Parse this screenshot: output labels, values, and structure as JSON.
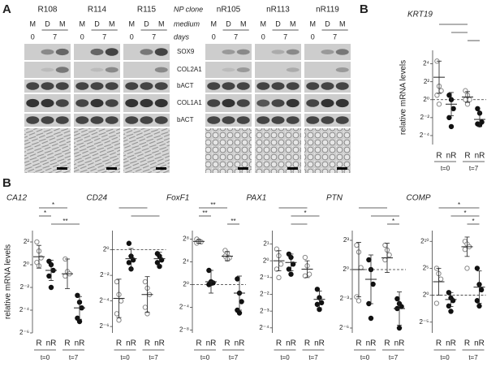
{
  "panel_a": {
    "label": "A",
    "np_clone_label": "NP clone",
    "medium_label": "medium",
    "days_label": "days",
    "clones": [
      {
        "name": "R108",
        "medium": [
          "M",
          "D",
          "M"
        ],
        "days": [
          "0",
          "7"
        ]
      },
      {
        "name": "R114",
        "medium": [
          "M",
          "D",
          "M"
        ],
        "days": [
          "0",
          "7"
        ]
      },
      {
        "name": "R115",
        "medium": [
          "M",
          "D",
          "M"
        ],
        "days": [
          "0",
          "7"
        ]
      },
      {
        "name": "nR105",
        "medium": [
          "M",
          "D",
          "M"
        ],
        "days": [
          "0",
          "7"
        ]
      },
      {
        "name": "nR113",
        "medium": [
          "M",
          "D",
          "M"
        ],
        "days": [
          "0",
          "7"
        ]
      },
      {
        "name": "nR119",
        "medium": [
          "M",
          "D",
          "M"
        ],
        "days": [
          "0",
          "7"
        ]
      }
    ],
    "markers": [
      "SOX9",
      "COL2A1",
      "bACT",
      "COL1A1",
      "bACT"
    ]
  },
  "panel_b": {
    "label": "B"
  },
  "chart_data": [
    {
      "type": "dot",
      "title": "KRT19",
      "ylabel": "relative mRNA levels",
      "categories": [
        "R",
        "nR",
        "R",
        "nR"
      ],
      "groups": [
        "t=0",
        "t=7"
      ],
      "colors": [
        "#888888",
        "#111111",
        "#888888",
        "#111111"
      ],
      "fills": [
        "#ffffff",
        "#111111",
        "#ffffff",
        "#111111"
      ],
      "values": [
        [
          4.3,
          1.5,
          1,
          0.5,
          -0.5
        ],
        [
          0.5,
          0,
          -1,
          -2,
          -3
        ],
        [
          1,
          0.5,
          0,
          0,
          -0.5
        ],
        [
          -1,
          -1.5,
          -2.5,
          -2.7,
          -2.8
        ]
      ],
      "means": [
        2.5,
        -0.5,
        0.3,
        -2.2
      ],
      "errors": [
        1.8,
        1.3,
        0.6,
        0.8
      ],
      "ylim": [
        -5,
        5.5
      ],
      "yticks": [
        {
          "value": 4,
          "label": "2⁴"
        },
        {
          "value": 2,
          "label": "2²"
        },
        {
          "value": 0,
          "label": "2⁰"
        },
        {
          "value": -2,
          "label": "2⁻²"
        },
        {
          "value": -4,
          "label": "2⁻⁴"
        }
      ],
      "reference_line": 0,
      "brackets": [
        {
          "pair": [
            0,
            2
          ]
        },
        {
          "pair": [
            1,
            2
          ]
        },
        {
          "pair": [
            2,
            3
          ]
        }
      ]
    },
    {
      "type": "dot",
      "title": "CA12",
      "ylabel": "relative mRNA levels",
      "categories": [
        "R",
        "nR",
        "R",
        "nR"
      ],
      "groups": [
        "t=0",
        "t=7"
      ],
      "colors": [
        "#888888",
        "#111111",
        "#888888",
        "#111111"
      ],
      "fills": [
        "#ffffff",
        "#111111",
        "#ffffff",
        "#111111"
      ],
      "values": [
        [
          2,
          1.2,
          0.6,
          0.2,
          -0.1
        ],
        [
          0.3,
          0,
          -0.5,
          -1,
          -2
        ],
        [
          0.5,
          -0.6,
          -0.8,
          -1
        ],
        [
          -2.7,
          -3.3,
          -3.8,
          -4.7,
          -5
        ]
      ],
      "means": [
        0.7,
        -0.5,
        -0.8,
        -3.8
      ],
      "errors": [
        1,
        0.9,
        1.3,
        1
      ],
      "ylim": [
        -6,
        3
      ],
      "yticks": [
        {
          "value": 2,
          "label": "2²"
        },
        {
          "value": 0,
          "label": "2⁰"
        },
        {
          "value": -2,
          "label": "2⁻²"
        },
        {
          "value": -4,
          "label": "2⁻⁴"
        },
        {
          "value": -6,
          "label": "2⁻⁶"
        }
      ],
      "brackets": [
        {
          "pair": [
            0,
            2
          ],
          "label": "*"
        },
        {
          "pair": [
            0,
            1
          ],
          "label": "*"
        },
        {
          "pair": [
            1,
            3
          ],
          "label": "**"
        }
      ]
    },
    {
      "type": "dot",
      "title": "CD24",
      "categories": [
        "R",
        "nR",
        "R",
        "nR"
      ],
      "groups": [
        "t=0",
        "t=7"
      ],
      "colors": [
        "#888888",
        "#111111",
        "#888888",
        "#111111"
      ],
      "fills": [
        "#ffffff",
        "#111111",
        "#ffffff",
        "#111111"
      ],
      "values": [
        [
          -2.5,
          -3.5,
          -4,
          -5,
          -5.5
        ],
        [
          0.5,
          -0.5,
          -0.8,
          -1,
          -1.5
        ],
        [
          -2.5,
          -3,
          -3.5,
          -4.5,
          -5
        ],
        [
          -0.3,
          -0.5,
          -0.8,
          -1,
          -1.3
        ]
      ],
      "means": [
        -3.8,
        -0.7,
        -3.5,
        -0.7
      ],
      "errors": [
        1.5,
        0.8,
        1.4,
        0.5
      ],
      "ylim": [
        -6.5,
        1.5
      ],
      "yticks": [
        {
          "value": 0,
          "label": "2⁰"
        },
        {
          "value": -2,
          "label": "2⁻²"
        },
        {
          "value": -4,
          "label": "2⁻⁴"
        },
        {
          "value": -6,
          "label": "2⁻⁶"
        }
      ],
      "reference_line": 0,
      "brackets": [
        {
          "pair": [
            0,
            2
          ]
        },
        {
          "pair": [
            1,
            3
          ]
        }
      ]
    },
    {
      "type": "dot",
      "title": "FoxF1",
      "categories": [
        "R",
        "nR",
        "R",
        "nR"
      ],
      "groups": [
        "t=0",
        "t=7"
      ],
      "colors": [
        "#888888",
        "#111111",
        "#888888",
        "#111111"
      ],
      "fills": [
        "#ffffff",
        "#111111",
        "#ffffff",
        "#111111"
      ],
      "values": [
        [
          8,
          7.7,
          7.5,
          7.3,
          7.6
        ],
        [
          2.5,
          0.5,
          0.3,
          0,
          0.2
        ],
        [
          6,
          5.5,
          4.7,
          5,
          4.5
        ],
        [
          1,
          -1.5,
          -3,
          -4.5,
          -5
        ]
      ],
      "means": [
        7.6,
        0.5,
        5,
        -1.5
      ],
      "errors": [
        0.3,
        2,
        0.8,
        3
      ],
      "ylim": [
        -8.5,
        9.5
      ],
      "yticks": [
        {
          "value": 8,
          "label": "2⁸"
        },
        {
          "value": 4,
          "label": "2⁴"
        },
        {
          "value": 0,
          "label": "2⁰"
        },
        {
          "value": -4,
          "label": "2⁻⁴"
        },
        {
          "value": -8,
          "label": "2⁻⁸"
        }
      ],
      "reference_line": 0,
      "brackets": [
        {
          "pair": [
            0,
            2
          ],
          "label": "**"
        },
        {
          "pair": [
            0,
            1
          ],
          "label": "**"
        },
        {
          "pair": [
            2,
            3
          ],
          "label": "**"
        }
      ]
    },
    {
      "type": "dot",
      "title": "PAX1",
      "categories": [
        "R",
        "nR",
        "R",
        "nR"
      ],
      "groups": [
        "t=0",
        "t=7"
      ],
      "colors": [
        "#888888",
        "#111111",
        "#888888",
        "#111111"
      ],
      "fills": [
        "#ffffff",
        "#111111",
        "#ffffff",
        "#111111"
      ],
      "values": [
        [
          0.7,
          0.3,
          -0.2,
          -0.5,
          -1
        ],
        [
          0.4,
          0.2,
          -0.2,
          -0.5,
          -0.8
        ],
        [
          0.2,
          -0.3,
          -0.8,
          -0.9
        ],
        [
          -1.7,
          -2.2,
          -2.5,
          -2.6,
          -2.9
        ]
      ],
      "means": [
        0,
        -0.1,
        -0.5,
        -2.3
      ],
      "errors": [
        0.6,
        0.5,
        0.5,
        0.5
      ],
      "ylim": [
        -4.3,
        1.8
      ],
      "yticks": [
        {
          "value": 1,
          "label": "2¹"
        },
        {
          "value": 0,
          "label": "2⁰"
        },
        {
          "value": -1,
          "label": "2⁻¹"
        },
        {
          "value": -2,
          "label": "2⁻²"
        },
        {
          "value": -3,
          "label": "2⁻³"
        },
        {
          "value": -4,
          "label": "2⁻⁴"
        }
      ],
      "brackets": [
        {
          "pair": [
            0,
            2
          ]
        },
        {
          "pair": [
            1,
            3
          ],
          "label": "*"
        },
        {
          "pair": [
            1,
            2
          ]
        }
      ]
    },
    {
      "type": "dot",
      "title": "PTN",
      "categories": [
        "R",
        "nR",
        "R",
        "nR"
      ],
      "groups": [
        "t=0",
        "t=7"
      ],
      "colors": [
        "#888888",
        "#111111",
        "#888888",
        "#111111"
      ],
      "fills": [
        "#ffffff",
        "#111111",
        "#ffffff",
        "#111111"
      ],
      "values": [
        [
          2.5,
          1.8,
          0.2,
          -2.8,
          -3.2
        ],
        [
          1,
          0,
          -1.5,
          -3.5,
          -5
        ],
        [
          2.5,
          2,
          1.5,
          1
        ],
        [
          -3,
          -3.5,
          -3.8,
          -4,
          -6
        ]
      ],
      "means": [
        0,
        -1,
        1.2,
        -4
      ],
      "errors": [
        2.8,
        2.5,
        1.5,
        1.7
      ],
      "ylim": [
        -6.5,
        4
      ],
      "yticks": [
        {
          "value": 3,
          "label": "2³"
        },
        {
          "value": 0,
          "label": "2⁰"
        },
        {
          "value": -3,
          "label": "2⁻³"
        },
        {
          "value": -6,
          "label": "2⁻⁶"
        }
      ],
      "reference_line": 0,
      "brackets": [
        {
          "pair": [
            0,
            2
          ]
        },
        {
          "pair": [
            1,
            3
          ]
        },
        {
          "pair": [
            2,
            3
          ],
          "label": "*"
        }
      ]
    },
    {
      "type": "dot",
      "title": "COMP",
      "categories": [
        "R",
        "nR",
        "R",
        "nR"
      ],
      "groups": [
        "t=0",
        "t=7"
      ],
      "colors": [
        "#888888",
        "#111111",
        "#888888",
        "#111111"
      ],
      "fills": [
        "#ffffff",
        "#111111",
        "#ffffff",
        "#111111"
      ],
      "values": [
        [
          5,
          4,
          3,
          -1.5
        ],
        [
          0.5,
          -0.5,
          -1,
          -2,
          -3
        ],
        [
          10,
          9.5,
          9,
          8.5,
          5
        ],
        [
          5,
          2,
          1,
          -1,
          -2
        ]
      ],
      "means": [
        2.5,
        -0.8,
        9,
        1.5
      ],
      "errors": [
        2.5,
        1.3,
        1.8,
        3
      ],
      "ylim": [
        -7,
        12
      ],
      "yticks": [
        {
          "value": 10,
          "label": "2¹⁰"
        },
        {
          "value": 5,
          "label": "2⁵"
        },
        {
          "value": 0,
          "label": "2⁰"
        },
        {
          "value": -5,
          "label": "2⁻⁵"
        }
      ],
      "reference_line": 0,
      "brackets": [
        {
          "pair": [
            0,
            3
          ],
          "label": "*"
        },
        {
          "pair": [
            1,
            3
          ],
          "label": "*"
        },
        {
          "pair": [
            2,
            3
          ],
          "label": "*"
        }
      ]
    }
  ]
}
